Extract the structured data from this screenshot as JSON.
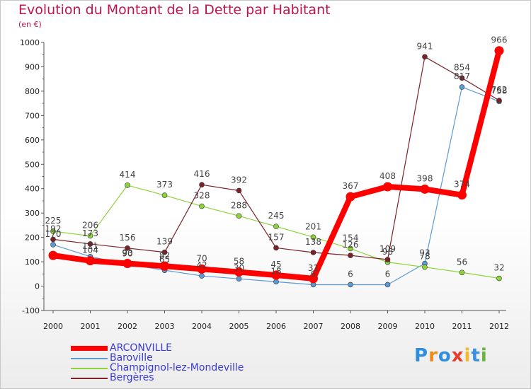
{
  "chart_data": {
    "type": "line",
    "title": "Evolution du Montant de la Dette par Habitant",
    "subtitle": "(en €)",
    "xlabel": "",
    "ylabel": "",
    "x": [
      "2000",
      "2001",
      "2002",
      "2003",
      "2004",
      "2005",
      "2006",
      "2007",
      "2008",
      "2009",
      "2010",
      "2011",
      "2012"
    ],
    "ylim": [
      -100,
      1000
    ],
    "yticks": [
      -100,
      0,
      100,
      200,
      300,
      400,
      500,
      600,
      700,
      800,
      900,
      1000
    ],
    "grid": false,
    "legend_position": "bottom-left",
    "series": [
      {
        "name": "ARCONVILLE",
        "color": "#ff0000",
        "emphasis": true,
        "values": [
          126,
          104,
          93,
          82,
          70,
          58,
          45,
          31,
          367,
          408,
          398,
          374,
          966
        ],
        "labels": [
          "",
          "104",
          "93",
          "82",
          "70",
          "58",
          "45",
          "31",
          "367",
          "408",
          "398",
          "374",
          "966"
        ]
      },
      {
        "name": "Baroville",
        "color": "#5b9bd5",
        "values": [
          170,
          121,
          90,
          65,
          42,
          30,
          18,
          6,
          6,
          6,
          93,
          817,
          758
        ],
        "labels": [
          "170",
          "121",
          "90",
          "65",
          "42",
          "30",
          "18",
          "6",
          "6",
          "6",
          "93",
          "817",
          "758"
        ]
      },
      {
        "name": "Champignol-lez-Mondeville",
        "color": "#8dd43b",
        "values": [
          225,
          206,
          414,
          373,
          328,
          288,
          245,
          201,
          154,
          98,
          78,
          56,
          32
        ],
        "labels": [
          "225",
          "206",
          "414",
          "373",
          "328",
          "288",
          "245",
          "201",
          "154",
          "98",
          "78",
          "56",
          "32"
        ]
      },
      {
        "name": "Bergères",
        "color": "#7b2228",
        "values": [
          192,
          173,
          156,
          139,
          416,
          392,
          157,
          138,
          126,
          109,
          941,
          854,
          762
        ],
        "labels": [
          "192",
          "173",
          "156",
          "139",
          "416",
          "392",
          "157",
          "138",
          "126",
          "109",
          "941",
          "854",
          "762"
        ]
      }
    ]
  },
  "legend": {
    "items": [
      "ARCONVILLE",
      "Baroville",
      "Champignol-lez-Mondeville",
      "Bergères"
    ]
  },
  "logo": {
    "letters": [
      "P",
      "r",
      "o",
      "x",
      "i",
      "t",
      "i"
    ],
    "colors": [
      "#2f8fdd",
      "#f08a1c",
      "#2f8fdd",
      "#e83f2c",
      "#f3b82d",
      "#3b8fdd",
      "#6ab43c"
    ]
  }
}
